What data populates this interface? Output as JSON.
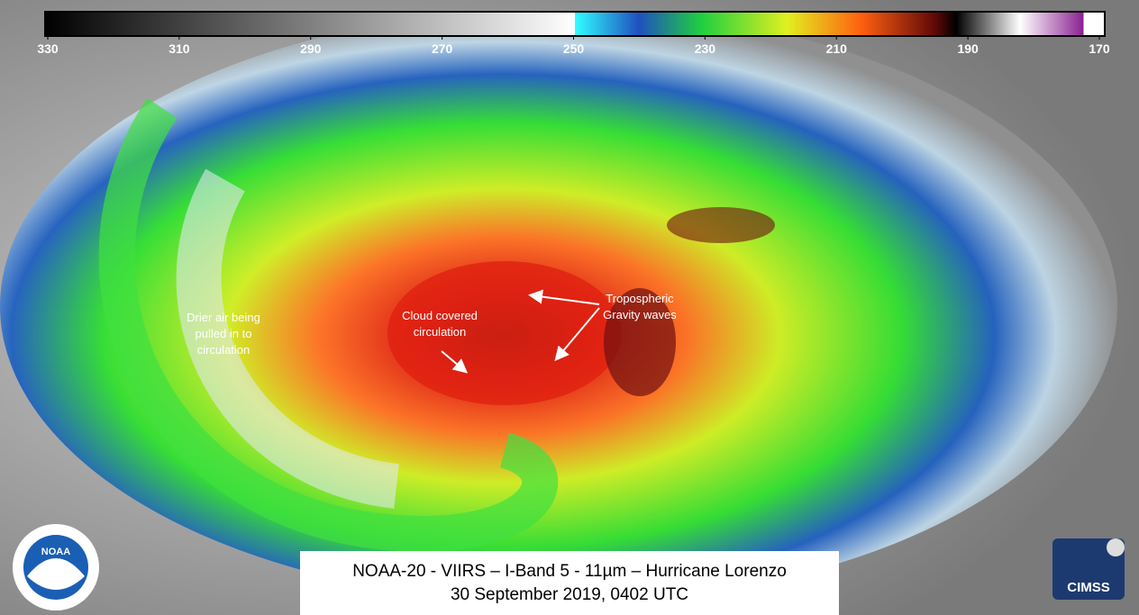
{
  "colorbar": {
    "range": [
      330,
      170
    ],
    "ticks": [
      330,
      310,
      290,
      270,
      250,
      230,
      210,
      190,
      170
    ]
  },
  "annotations": [
    {
      "lines": [
        "Drier air being",
        "pulled in to",
        "circulation"
      ]
    },
    {
      "lines": [
        "Cloud covered",
        "circulation"
      ]
    },
    {
      "lines": [
        "Tropospheric",
        "Gravity waves"
      ]
    }
  ],
  "caption": {
    "lines": [
      "NOAA-20 - VIIRS – I-Band 5 - 11µm – Hurricane Lorenzo",
      "30 September 2019, 0402 UTC"
    ]
  },
  "logos": {
    "left": "NOAA",
    "right": "CIMSS"
  }
}
